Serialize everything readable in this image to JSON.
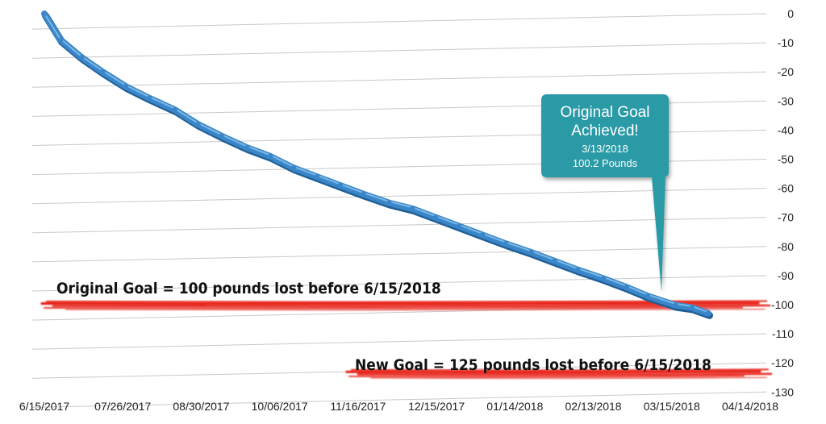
{
  "chart_data": {
    "type": "line",
    "title": "",
    "xlabel": "",
    "ylabel": "",
    "ylim": [
      -130,
      0
    ],
    "y_ticks": [
      "0",
      "-10",
      "-20",
      "-30",
      "-40",
      "-50",
      "-60",
      "-70",
      "-80",
      "-90",
      "-100",
      "-110",
      "-120",
      "-130"
    ],
    "x_ticks": [
      "6/15/2017",
      "07/26/2017",
      "08/30/2017",
      "10/06/2017",
      "11/16/2017",
      "12/15/2017",
      "01/14/2018",
      "02/13/2018",
      "03/15/2018",
      "04/14/2018"
    ],
    "grid": true,
    "series": [
      {
        "color": "#3a86c8",
        "x": [
          "6/15/2017",
          "6/22/2017",
          "7/1/2017",
          "7/10/2017",
          "7/20/2017",
          "7/30/2017",
          "8/10/2017",
          "8/20/2017",
          "8/30/2017",
          "9/10/2017",
          "9/20/2017",
          "9/30/2017",
          "10/10/2017",
          "10/20/2017",
          "10/30/2017",
          "11/10/2017",
          "11/20/2017",
          "11/30/2017",
          "12/10/2017",
          "12/20/2017",
          "12/30/2017",
          "1/10/2018",
          "1/20/2018",
          "1/30/2018",
          "2/10/2018",
          "2/20/2018",
          "3/1/2018",
          "3/13/2018",
          "3/20/2018",
          "3/27/2018"
        ],
        "y": [
          0,
          -9,
          -15,
          -20,
          -25,
          -29,
          -33,
          -38,
          -42,
          -46,
          -49,
          -53,
          -56,
          -59,
          -62,
          -65,
          -67,
          -70,
          -73,
          -76,
          -79,
          -82,
          -85,
          -88,
          -91,
          -94,
          -97,
          -100.2,
          -101,
          -103
        ]
      }
    ],
    "annotations": {
      "callout": {
        "title_lines": [
          "Original Goal",
          "Achieved!"
        ],
        "date": "3/13/2018",
        "value_text": "100.2 Pounds",
        "color": "#2b9aa6"
      },
      "original_goal": {
        "text": "Original Goal = 100 pounds lost before 6/15/2018",
        "value": -100,
        "color": "#e8281e"
      },
      "new_goal": {
        "text": "New Goal = 125 pounds lost before 6/15/2018",
        "value": -125,
        "color": "#e8281e"
      }
    }
  }
}
